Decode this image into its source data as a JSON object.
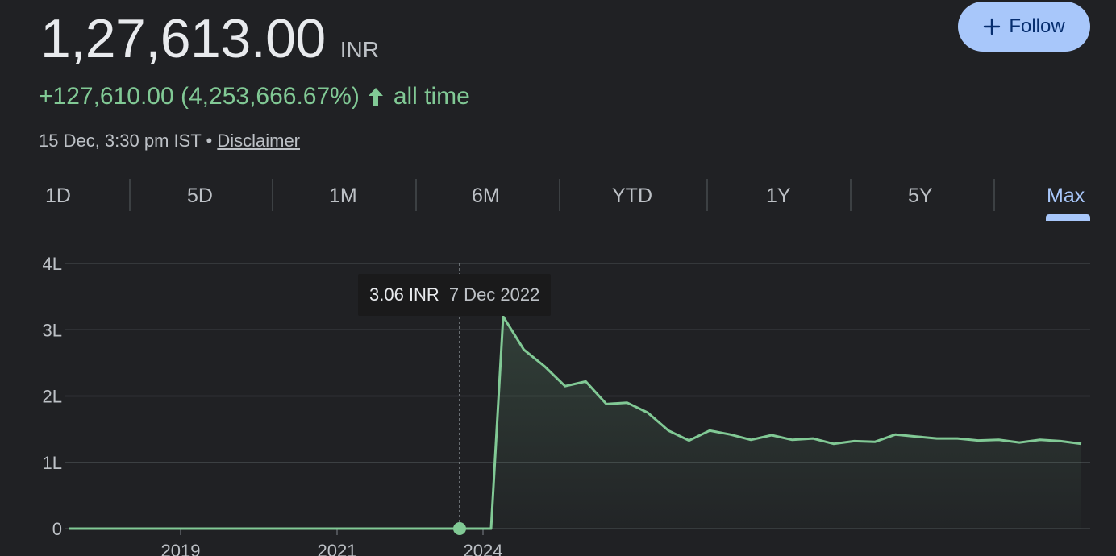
{
  "header": {
    "price": "1,27,613.00",
    "currency": "INR",
    "change": "+127,610.00 (4,253,666.67%)",
    "change_period": "all time",
    "timestamp": "15 Dec, 3:30 pm IST",
    "separator": "•",
    "disclaimer_label": "Disclaimer",
    "follow_label": "Follow"
  },
  "colors": {
    "accent": "#a8c7fa",
    "positive": "#81c995",
    "background": "#202124"
  },
  "icons": {
    "follow": "plus-icon",
    "change": "arrow-up-icon"
  },
  "ranges": {
    "items": [
      "1D",
      "5D",
      "1M",
      "6M",
      "YTD",
      "1Y",
      "5Y",
      "Max"
    ],
    "selected": "Max"
  },
  "tooltip": {
    "value": "3.06 INR",
    "date": "7 Dec 2022"
  },
  "chart_data": {
    "type": "area",
    "x_ticks": [
      "2019",
      "2021",
      "2024"
    ],
    "y_ticks": [
      "0",
      "1L",
      "2L",
      "3L",
      "4L"
    ],
    "ylim": [
      0,
      400000
    ],
    "grid": true,
    "x": [
      "2018-06",
      "2019-01",
      "2020-01",
      "2021-01",
      "2022-01",
      "2022-12",
      "2023-03",
      "2023-05",
      "2023-06",
      "2023-08",
      "2023-09",
      "2023-10",
      "2023-11",
      "2023-12",
      "2024-01",
      "2024-02",
      "2024-03",
      "2024-04",
      "2024-05",
      "2024-06",
      "2024-07",
      "2024-08",
      "2024-09",
      "2024-10",
      "2024-11",
      "2024-12",
      "2025-01",
      "2025-02",
      "2025-03",
      "2025-04",
      "2025-05",
      "2025-06",
      "2025-07",
      "2025-08",
      "2025-09",
      "2025-10",
      "2025-11",
      "2025-12"
    ],
    "values": [
      3,
      3,
      3,
      3,
      3,
      3,
      3,
      3,
      3,
      320000,
      270000,
      245000,
      215000,
      222000,
      188000,
      190000,
      175000,
      148000,
      133000,
      148000,
      142000,
      134000,
      141000,
      134000,
      136000,
      128000,
      132000,
      131000,
      142000,
      139000,
      136000,
      136000,
      133000,
      134000,
      130000,
      134000,
      132000,
      128000
    ],
    "highlight": {
      "x": "2022-12",
      "value": 3.06
    }
  }
}
